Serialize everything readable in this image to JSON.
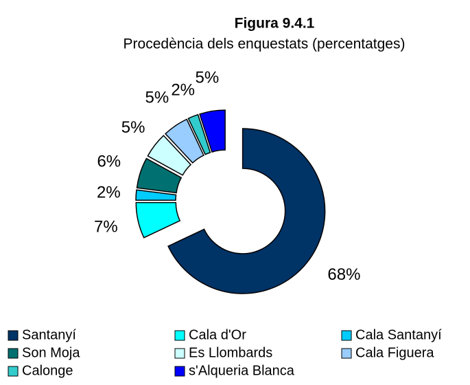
{
  "chart_data": {
    "type": "pie",
    "title": "Figura 9.4.1",
    "subtitle": "Procedència dels enquestats (percentatges)",
    "categories": [
      "Santanyí",
      "Cala d'Or",
      "Cala Santanyí",
      "Son Moja",
      "Es Llombards",
      "Cala Figuera",
      "Calonge",
      "s'Alqueria Blanca"
    ],
    "values": [
      68,
      7,
      2,
      6,
      5,
      5,
      2,
      5
    ],
    "value_labels": [
      "68%",
      "7%",
      "2%",
      "6%",
      "5%",
      "5%",
      "2%",
      "5%"
    ],
    "colors": [
      "#003366",
      "#00ffff",
      "#00ccff",
      "#007070",
      "#ccffff",
      "#99ccff",
      "#33cccc",
      "#0000ff"
    ],
    "donut": true,
    "legend": "bottom"
  }
}
